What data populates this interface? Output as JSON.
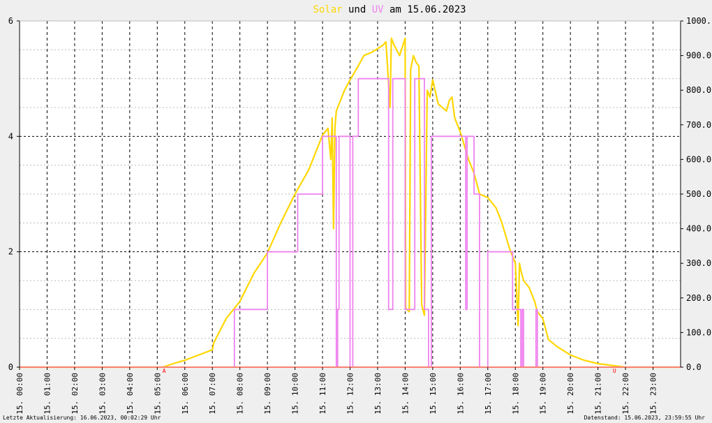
{
  "title": {
    "solar": "Solar",
    "und": " und ",
    "uv": "UV",
    "rest": " am 15.06.2023",
    "solar_color": "#ffd700",
    "uv_color": "#ee82ee"
  },
  "footer": {
    "left": "Letzte Aktualisierung: 16.06.2023, 00:02:29 Uhr",
    "right": "Datenstand: 15.06.2023, 23:59:55 Uhr"
  },
  "chart_data": {
    "type": "line",
    "x_unit": "hours",
    "xlim": [
      0,
      24
    ],
    "y_left": {
      "ylim": [
        0,
        6
      ],
      "ticks": [
        "0",
        "2",
        "4",
        "6"
      ]
    },
    "y_right": {
      "ylim": [
        0,
        1000
      ],
      "ticks": [
        "0.0",
        "100.0",
        "200.0",
        "300.0",
        "400.0",
        "500.0",
        "600.0",
        "700.0",
        "800.0",
        "900.0",
        "1000.0"
      ]
    },
    "x_ticks": [
      "15. 00:00",
      "15. 01:00",
      "15. 02:00",
      "15. 03:00",
      "15. 04:00",
      "15. 05:00",
      "15. 06:00",
      "15. 07:00",
      "15. 08:00",
      "15. 09:00",
      "15. 10:00",
      "15. 11:00",
      "15. 12:00",
      "15. 13:00",
      "15. 14:00",
      "15. 15:00",
      "15. 16:00",
      "15. 17:00",
      "15. 18:00",
      "15. 19:00",
      "15. 20:00",
      "15. 21:00",
      "15. 22:00",
      "15. 23:00"
    ],
    "markers": [
      {
        "label": "A",
        "x": 5.25
      },
      {
        "label": "U",
        "x": 21.6
      }
    ],
    "series": [
      {
        "name": "Solar",
        "axis": "right",
        "color": "#ffd700",
        "x": [
          0,
          5.2,
          5.5,
          6,
          6.5,
          7,
          7.05,
          7.5,
          8,
          8.5,
          9,
          9.5,
          10,
          10.5,
          11,
          11.2,
          11.3,
          11.35,
          11.4,
          11.45,
          11.5,
          11.6,
          11.8,
          12,
          12.3,
          12.5,
          12.8,
          13,
          13.2,
          13.3,
          13.35,
          13.45,
          13.5,
          13.6,
          13.8,
          14,
          14.02,
          14.15,
          14.2,
          14.3,
          14.4,
          14.5,
          14.6,
          14.7,
          14.8,
          14.9,
          15,
          15.2,
          15.5,
          15.6,
          15.7,
          15.8,
          16,
          16.3,
          16.5,
          16.7,
          17,
          17.3,
          17.5,
          17.8,
          18,
          18.1,
          18.15,
          18.2,
          18.3,
          18.5,
          18.7,
          18.8,
          18.9,
          19,
          19.2,
          19.5,
          20,
          20.5,
          21,
          21.5,
          22,
          24
        ],
        "y": [
          0,
          0,
          8,
          20,
          35,
          50,
          70,
          140,
          190,
          270,
          330,
          420,
          500,
          570,
          670,
          690,
          600,
          720,
          400,
          690,
          740,
          760,
          800,
          830,
          870,
          900,
          910,
          920,
          930,
          940,
          880,
          750,
          950,
          930,
          900,
          950,
          170,
          160,
          860,
          900,
          880,
          870,
          180,
          150,
          800,
          780,
          830,
          760,
          740,
          770,
          780,
          720,
          680,
          600,
          560,
          500,
          490,
          460,
          420,
          340,
          300,
          120,
          300,
          280,
          250,
          230,
          190,
          160,
          150,
          140,
          80,
          60,
          35,
          20,
          10,
          5,
          0,
          0
        ]
      },
      {
        "name": "UV",
        "axis": "left",
        "color": "#ee82ee",
        "x": [
          0,
          7.8,
          7.8,
          9,
          9,
          10,
          10,
          10.1,
          10.1,
          11,
          11,
          11.5,
          11.5,
          11.55,
          11.55,
          11.6,
          11.6,
          12,
          12,
          12.1,
          12.1,
          12.3,
          12.3,
          12.35,
          12.35,
          13.4,
          13.4,
          13.55,
          13.55,
          13.6,
          13.6,
          14,
          14,
          14.35,
          14.35,
          14.4,
          14.4,
          14.7,
          14.7,
          14.85,
          14.85,
          14.95,
          14.95,
          15,
          15,
          16.2,
          16.2,
          16.25,
          16.25,
          16.5,
          16.5,
          16.7,
          16.7,
          17,
          17,
          17.9,
          17.9,
          18.2,
          18.2,
          18.25,
          18.25,
          18.3,
          18.3,
          18.75,
          18.75,
          18.8,
          18.8,
          19,
          19,
          24
        ],
        "y": [
          0,
          0,
          1,
          1,
          2,
          2,
          2,
          2,
          3,
          3,
          4,
          4,
          0,
          0,
          1,
          1,
          4,
          4,
          0,
          0,
          4,
          4,
          5,
          5,
          5,
          5,
          1,
          1,
          5,
          5,
          5,
          5,
          1,
          1,
          5,
          5,
          5,
          5,
          1,
          1,
          0,
          0,
          4,
          4,
          4,
          4,
          1,
          1,
          4,
          4,
          3,
          3,
          0,
          0,
          2,
          2,
          1,
          1,
          0,
          0,
          1,
          1,
          0,
          0,
          1,
          1,
          0,
          0,
          0,
          0
        ]
      }
    ]
  }
}
